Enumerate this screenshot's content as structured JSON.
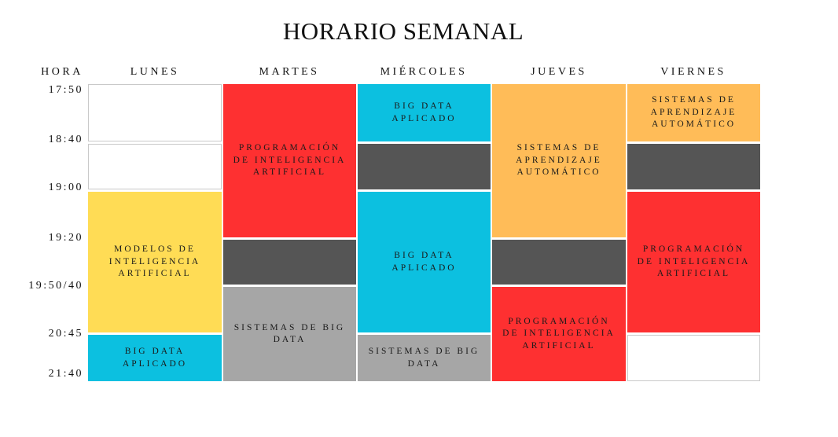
{
  "title": "HORARIO SEMANAL",
  "headers": {
    "hora": "HORA",
    "days": [
      "LUNES",
      "MARTES",
      "MIÉRCOLES",
      "JUEVES",
      "VIERNES"
    ]
  },
  "times": [
    "17:50",
    "18:40",
    "19:00",
    "19:20",
    "19:50/40",
    "20:45",
    "21:40"
  ],
  "colors": {
    "red": "#fe3031",
    "cyan": "#0cc0e0",
    "dark": "#555555",
    "orange": "#ffbc58",
    "yellow": "#ffdc55",
    "gray": "#a6a6a6",
    "white": "#ffffff"
  },
  "schedule": {
    "lunes": [
      "",
      "",
      "MODELOS DE INTELIGENCIA ARTIFICIAL",
      "BIG DATA APLICADO"
    ],
    "martes": [
      "PROGRAMACIÓN DE INTELIGENCIA ARTIFICIAL",
      "",
      "SISTEMAS DE BIG DATA"
    ],
    "miercoles": [
      "BIG DATA APLICADO",
      "",
      "BIG DATA APLICADO",
      "SISTEMAS DE BIG DATA"
    ],
    "jueves": [
      "SISTEMAS DE APRENDIZAJE AUTOMÁTICO",
      "",
      "PROGRAMACIÓN DE INTELIGENCIA ARTIFICIAL"
    ],
    "viernes": [
      "SISTEMAS DE APRENDIZAJE AUTOMÁTICO",
      "",
      "PROGRAMACIÓN DE INTELIGENCIA ARTIFICIAL",
      ""
    ]
  }
}
